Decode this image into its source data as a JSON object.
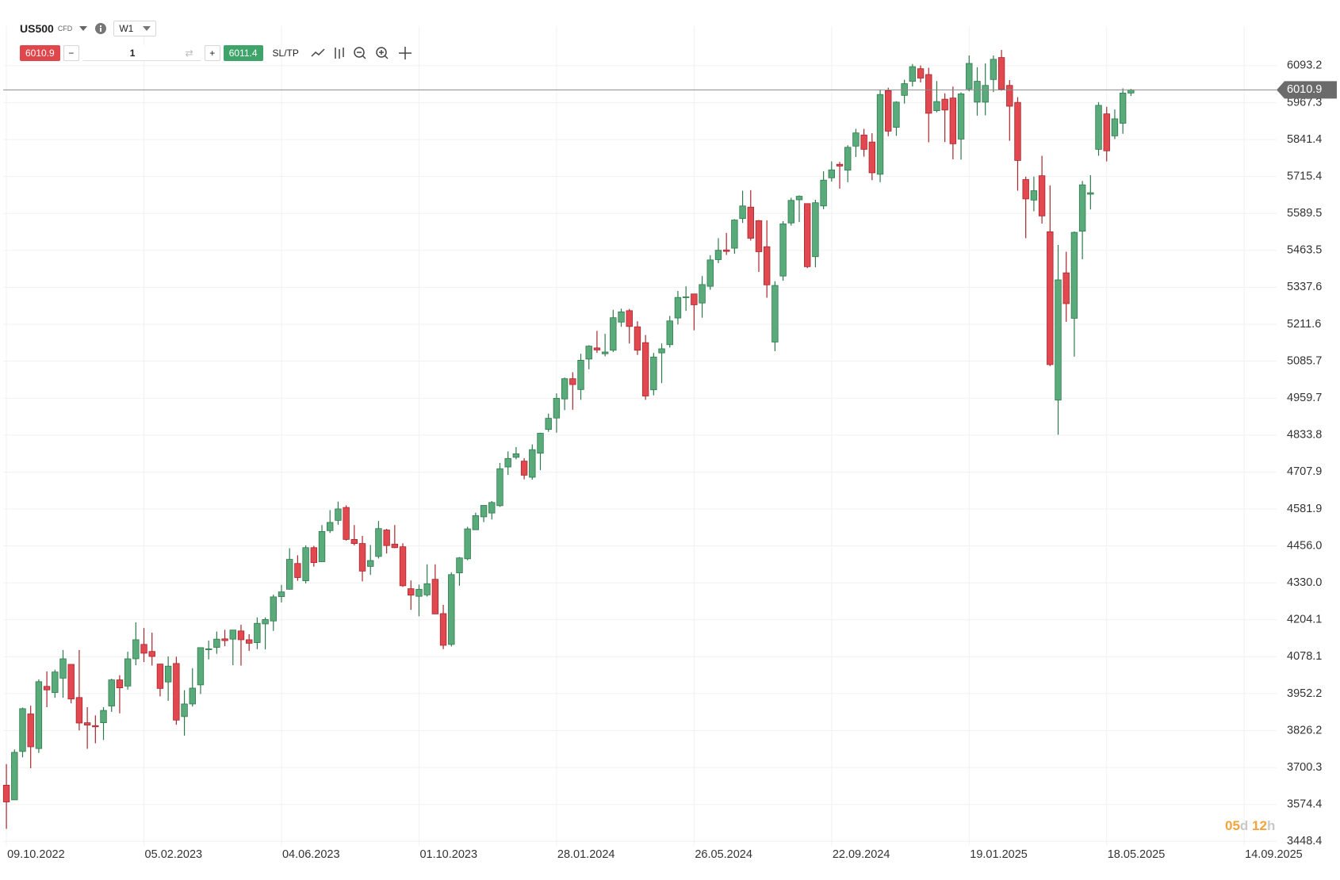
{
  "toolbar": {
    "symbol": "US500",
    "instrument_type": "CFD",
    "timeframe": "W1",
    "sell_price": 6010.9,
    "quantity": 1,
    "buy_price": 6011.4,
    "sl_tp": "SL/TP"
  },
  "chart_data": {
    "type": "candlestick",
    "open": [
      3640,
      3590,
      3755,
      3883,
      3765,
      3977,
      3956,
      4005,
      4052,
      3939,
      3853,
      3843,
      3853,
      3910,
      3999,
      3978,
      4071,
      4120,
      4096,
      4053,
      3992,
      4055,
      3874,
      3917,
      3982,
      4102,
      4110,
      4139,
      4138,
      4166,
      4136,
      4126,
      4190,
      4200,
      4283,
      4308,
      4396,
      4337,
      4450,
      4402,
      4508,
      4543,
      4587,
      4478,
      4464,
      4386,
      4420,
      4510,
      4462,
      4453,
      4310,
      4284,
      4289,
      4342,
      4225,
      4120,
      4364,
      4412,
      4511,
      4555,
      4568,
      4593,
      4725,
      4758,
      4745,
      4690,
      4772,
      4853,
      4892,
      4957,
      5026,
      4989,
      5093,
      5131,
      5111,
      5123,
      5219,
      5258,
      5203,
      5149,
      4988,
      5114,
      5142,
      5233,
      5305,
      5315,
      5284,
      5341,
      5432,
      5465,
      5471,
      5572,
      5611,
      5565,
      5476,
      5151,
      5376,
      5557,
      5636,
      5623,
      5442,
      5615,
      5711,
      5757,
      5737,
      5819,
      5857,
      5833,
      5723,
      6008,
      5883,
      5992,
      6040,
      6083,
      6063,
      5940,
      5979,
      5983,
      5843,
      6014,
      5969,
      5969,
      6046,
      6121,
      6026,
      5968,
      5705,
      5635,
      5718,
      5527,
      4953,
      5387,
      5232,
      5529,
      5655,
      5808,
      5929,
      5854,
      5897,
      6000
    ],
    "high": [
      3712,
      3762,
      3905,
      3911,
      4001,
      4028,
      4034,
      4101,
      4052,
      4101,
      3906,
      3878,
      3906,
      4003,
      4015,
      4095,
      4195,
      4176,
      4160,
      4054,
      4079,
      4078,
      3964,
      4039,
      4110,
      4133,
      4164,
      4170,
      4170,
      4187,
      4155,
      4212,
      4212,
      4290,
      4323,
      4448,
      4424,
      4458,
      4456,
      4527,
      4578,
      4607,
      4594,
      4527,
      4490,
      4459,
      4541,
      4514,
      4527,
      4465,
      4338,
      4324,
      4393,
      4393,
      4255,
      4366,
      4418,
      4521,
      4569,
      4595,
      4609,
      4739,
      4778,
      4793,
      4755,
      4802,
      4842,
      4907,
      4976,
      5030,
      5048,
      5111,
      5140,
      5189,
      5179,
      5261,
      5265,
      5264,
      5222,
      5175,
      5114,
      5146,
      5240,
      5325,
      5341,
      5315,
      5376,
      5447,
      5505,
      5523,
      5570,
      5667,
      5669,
      5567,
      5566,
      5358,
      5563,
      5643,
      5651,
      5623,
      5636,
      5733,
      5767,
      5765,
      5822,
      5878,
      5878,
      5863,
      6012,
      6018,
      5972,
      6045,
      6099,
      6094,
      6086,
      6041,
      5999,
      6022,
      6002,
      6128,
      6088,
      6101,
      6128,
      6147,
      6044,
      5986,
      5715,
      5715,
      5786,
      5685,
      5482,
      5459,
      5528,
      5700,
      5720,
      5969,
      5953,
      5944,
      6016,
      6014
    ],
    "low": [
      3491,
      3590,
      3735,
      3698,
      3750,
      3906,
      3938,
      3938,
      3919,
      3827,
      3764,
      3783,
      3794,
      3890,
      3885,
      3966,
      4049,
      4060,
      4048,
      3943,
      3928,
      3846,
      3809,
      3908,
      3951,
      4069,
      4088,
      4114,
      4049,
      4048,
      4098,
      4104,
      4103,
      4166,
      4263,
      4307,
      4337,
      4328,
      4385,
      4401,
      4500,
      4528,
      4474,
      4458,
      4335,
      4357,
      4413,
      4430,
      4448,
      4316,
      4238,
      4216,
      4283,
      4223,
      4104,
      4113,
      4320,
      4407,
      4510,
      4537,
      4546,
      4589,
      4698,
      4751,
      4683,
      4682,
      4714,
      4845,
      4842,
      4919,
      4920,
      4954,
      5058,
      5114,
      5102,
      5117,
      5203,
      5146,
      5107,
      4954,
      4969,
      5011,
      5132,
      5211,
      5257,
      5191,
      5234,
      5329,
      5420,
      5448,
      5452,
      5557,
      5497,
      5390,
      5302,
      5120,
      5360,
      5548,
      5560,
      5403,
      5406,
      5604,
      5698,
      5674,
      5696,
      5782,
      5783,
      5703,
      5696,
      5853,
      5854,
      5964,
      6022,
      6036,
      5832,
      5934,
      5833,
      5774,
      5773,
      6006,
      5923,
      5924,
      6003,
      6008,
      5837,
      5667,
      5505,
      5597,
      5555,
      5069,
      4835,
      5220,
      5101,
      5433,
      5603,
      5786,
      5767,
      5843,
      5861,
      5990
    ],
    "close": [
      3583,
      3752,
      3901,
      3771,
      3993,
      3965,
      4026,
      4071,
      3934,
      3852,
      3845,
      3839,
      3895,
      3999,
      3972,
      4071,
      4136,
      4090,
      4079,
      3970,
      4046,
      3862,
      3917,
      3971,
      4109,
      4105,
      4138,
      4133,
      4169,
      4136,
      4124,
      4192,
      4205,
      4282,
      4299,
      4410,
      4348,
      4450,
      4399,
      4505,
      4536,
      4582,
      4478,
      4464,
      4370,
      4406,
      4515,
      4457,
      4450,
      4320,
      4288,
      4308,
      4327,
      4224,
      4117,
      4358,
      4415,
      4514,
      4559,
      4594,
      4604,
      4719,
      4754,
      4770,
      4697,
      4784,
      4840,
      4891,
      4959,
      5026,
      5006,
      5089,
      5137,
      5124,
      5117,
      5234,
      5254,
      5204,
      5123,
      4967,
      5100,
      5128,
      5223,
      5303,
      5305,
      5278,
      5347,
      5431,
      5464,
      5460,
      5567,
      5615,
      5505,
      5459,
      5346,
      5344,
      5554,
      5634,
      5648,
      5408,
      5626,
      5703,
      5738,
      5751,
      5815,
      5864,
      5808,
      5728,
      5995,
      5870,
      5969,
      6032,
      6090,
      6051,
      5931,
      5971,
      5942,
      5827,
      5997,
      6101,
      6040,
      6026,
      6115,
      6013,
      5955,
      5770,
      5639,
      5667,
      5581,
      5074,
      5363,
      5282,
      5525,
      5687,
      5660,
      5958,
      5803,
      5912,
      6000,
      6010.9
    ],
    "up_color": "#5aab7b",
    "down_color": "#e2484f",
    "current_price": 6010.9,
    "xlim": [
      -0.4,
      157
    ],
    "xticks": [
      {
        "value": 0,
        "label": "09.10.2022"
      },
      {
        "value": 17,
        "label": "05.02.2023"
      },
      {
        "value": 34,
        "label": "04.06.2023"
      },
      {
        "value": 51,
        "label": "01.10.2023"
      },
      {
        "value": 68,
        "label": "28.01.2024"
      },
      {
        "value": 85,
        "label": "26.05.2024"
      },
      {
        "value": 102,
        "label": "22.09.2024"
      },
      {
        "value": 119,
        "label": "19.01.2025"
      },
      {
        "value": 136,
        "label": "18.05.2025"
      },
      {
        "value": 153,
        "label": "14.09.2025"
      }
    ],
    "ylim": [
      3433,
      6228
    ],
    "yticks": [
      {
        "value": 3448.4,
        "label": "3448.4"
      },
      {
        "value": 3574.4,
        "label": "3574.4"
      },
      {
        "value": 3700.3,
        "label": "3700.3"
      },
      {
        "value": 3826.2,
        "label": "3826.2"
      },
      {
        "value": 3952.2,
        "label": "3952.2"
      },
      {
        "value": 4078.1,
        "label": "4078.1"
      },
      {
        "value": 4204.1,
        "label": "4204.1"
      },
      {
        "value": 4330.0,
        "label": "4330.0"
      },
      {
        "value": 4456.0,
        "label": "4456.0"
      },
      {
        "value": 4581.9,
        "label": "4581.9"
      },
      {
        "value": 4707.9,
        "label": "4707.9"
      },
      {
        "value": 4833.8,
        "label": "4833.8"
      },
      {
        "value": 4959.7,
        "label": "4959.7"
      },
      {
        "value": 5085.7,
        "label": "5085.7"
      },
      {
        "value": 5211.6,
        "label": "5211.6"
      },
      {
        "value": 5337.6,
        "label": "5337.6"
      },
      {
        "value": 5463.5,
        "label": "5463.5"
      },
      {
        "value": 5589.5,
        "label": "5589.5"
      },
      {
        "value": 5715.4,
        "label": "5715.4"
      },
      {
        "value": 5841.4,
        "label": "5841.4"
      },
      {
        "value": 5967.3,
        "label": "5967.3"
      },
      {
        "value": 6093.2,
        "label": "6093.2"
      }
    ],
    "grid": true,
    "countdown": {
      "days": "05",
      "days_unit": "d",
      "hours": "12",
      "hours_unit": "h"
    }
  }
}
